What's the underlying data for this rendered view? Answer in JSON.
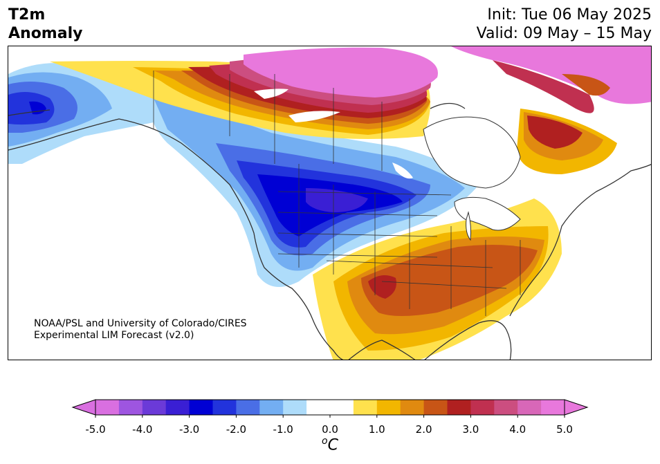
{
  "header": {
    "title_line1": "T2m",
    "title_line2": "Anomaly",
    "init_label": "Init: Tue 06 May 2025",
    "valid_label": "Valid: 09 May – 15 May"
  },
  "credit": {
    "line1": "NOAA/PSL and University of Colorado/CIRES",
    "line2": "Experimental LIM Forecast (v2.0)"
  },
  "colorbar": {
    "unit_super": "o",
    "unit_main": "C",
    "tick_labels": [
      "-5.0",
      "-4.0",
      "-3.0",
      "-2.0",
      "-1.0",
      "0.0",
      "1.0",
      "2.0",
      "3.0",
      "4.0",
      "5.0"
    ],
    "colors": [
      "#d96fe0",
      "#9e55e0",
      "#6b3ad8",
      "#3a1fd4",
      "#0000d4",
      "#2233dc",
      "#4a6ee6",
      "#73aef2",
      "#aedcfa",
      "#ffffff",
      "#ffffff",
      "#ffe14d",
      "#f2b600",
      "#e08a10",
      "#c85516",
      "#b02020",
      "#c03050",
      "#cc4e80",
      "#d867b8",
      "#e878dc"
    ],
    "under_color": "#d96fe0",
    "over_color": "#e878dc"
  },
  "map": {
    "region": "North America",
    "variable": "2 m temperature anomaly"
  }
}
